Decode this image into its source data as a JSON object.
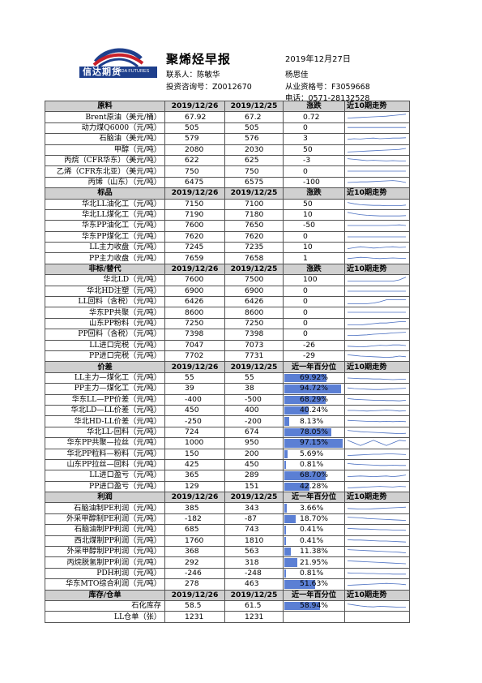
{
  "header": {
    "logo_cn": "信达期货",
    "logo_en": "CINDA FUTURES",
    "title": "聚烯烃早报",
    "date": "2019年12月27日",
    "contact_label": "联系人：陈敏华",
    "analyst": "杨思佳",
    "advisor_no": "投资咨询号：Z0012670",
    "license_no": "从业资格号：F3059668",
    "phone": "电话：0571-28132528"
  },
  "sections": [
    {
      "type": "price",
      "header": [
        "原料",
        "2019/12/26",
        "2019/12/25",
        "涨跌",
        "近10期走势"
      ],
      "rows": [
        {
          "name": "Brent原油（美元/桶）",
          "v1": "67.92",
          "v2": "67.2",
          "chg": "0.72",
          "trend": [
            0.3,
            0.35,
            0.4,
            0.45,
            0.5,
            0.55,
            0.6,
            0.7,
            0.8,
            0.9
          ]
        },
        {
          "name": "动力煤Q6000（元/吨）",
          "v1": "505",
          "v2": "505",
          "chg": "0",
          "trend": [
            0.6,
            0.6,
            0.6,
            0.6,
            0.6,
            0.6,
            0.6,
            0.6,
            0.6,
            0.6
          ]
        },
        {
          "name": "石脑油（美元/吨）",
          "v1": "579",
          "v2": "576",
          "chg": "3",
          "trend": [
            0.4,
            0.5,
            0.45,
            0.55,
            0.6,
            0.5,
            0.55,
            0.6,
            0.6,
            0.65
          ]
        },
        {
          "name": "甲醇（元/吨）",
          "v1": "2080",
          "v2": "2030",
          "chg": "50",
          "trend": [
            0.2,
            0.25,
            0.3,
            0.35,
            0.4,
            0.45,
            0.5,
            0.55,
            0.6,
            0.75
          ]
        },
        {
          "name": "丙烷（CFR华东）（美元/吨）",
          "v1": "622",
          "v2": "625",
          "chg": "-3",
          "trend": [
            0.8,
            0.7,
            0.6,
            0.5,
            0.55,
            0.5,
            0.45,
            0.5,
            0.45,
            0.45
          ]
        },
        {
          "name": "乙烯（CFR东北亚）（美元/吨）",
          "v1": "750",
          "v2": "750",
          "chg": "0",
          "trend": [
            0.5,
            0.5,
            0.5,
            0.5,
            0.5,
            0.5,
            0.5,
            0.5,
            0.5,
            0.5
          ]
        },
        {
          "name": "丙烯（山东）（元/吨）",
          "v1": "6475",
          "v2": "6575",
          "chg": "-100",
          "trend": [
            0.5,
            0.55,
            0.6,
            0.6,
            0.65,
            0.7,
            0.75,
            0.8,
            0.7,
            0.5
          ]
        }
      ]
    },
    {
      "type": "price",
      "header": [
        "标品",
        "2019/12/26",
        "2019/12/25",
        "涨跌",
        "近10期走势"
      ],
      "rows": [
        {
          "name": "华北LL油化工（元/吨）",
          "v1": "7150",
          "v2": "7100",
          "chg": "50",
          "trend": [
            0.8,
            0.6,
            0.45,
            0.4,
            0.35,
            0.35,
            0.3,
            0.3,
            0.3,
            0.4
          ]
        },
        {
          "name": "华北LL煤化工（元/吨）",
          "v1": "7190",
          "v2": "7180",
          "chg": "10",
          "trend": [
            0.9,
            0.7,
            0.55,
            0.45,
            0.4,
            0.35,
            0.35,
            0.35,
            0.35,
            0.4
          ]
        },
        {
          "name": "华东PP油化工（元/吨）",
          "v1": "7600",
          "v2": "7650",
          "chg": "-50",
          "trend": [
            0.5,
            0.5,
            0.5,
            0.5,
            0.5,
            0.5,
            0.5,
            0.55,
            0.6,
            0.5
          ]
        },
        {
          "name": "华东PP煤化工（元/吨）",
          "v1": "7620",
          "v2": "7620",
          "chg": "0",
          "trend": [
            0.5,
            0.5,
            0.5,
            0.5,
            0.5,
            0.5,
            0.5,
            0.5,
            0.5,
            0.5
          ]
        },
        {
          "name": "LL主力收盘（元/吨）",
          "v1": "7245",
          "v2": "7235",
          "chg": "10",
          "trend": [
            0.3,
            0.45,
            0.6,
            0.5,
            0.4,
            0.45,
            0.55,
            0.6,
            0.5,
            0.55
          ]
        },
        {
          "name": "PP主力收盘（元/吨）",
          "v1": "7659",
          "v2": "7658",
          "chg": "1",
          "trend": [
            0.4,
            0.5,
            0.6,
            0.55,
            0.45,
            0.4,
            0.45,
            0.5,
            0.45,
            0.45
          ]
        }
      ]
    },
    {
      "type": "price",
      "header": [
        "非标/替代",
        "2019/12/26",
        "2019/12/25",
        "涨跌",
        "近10期走势"
      ],
      "rows": [
        {
          "name": "华北LD（元/吨）",
          "v1": "7600",
          "v2": "7500",
          "chg": "100",
          "trend": [
            0.3,
            0.3,
            0.3,
            0.3,
            0.3,
            0.3,
            0.3,
            0.3,
            0.5,
            0.9
          ]
        },
        {
          "name": "华北HD注塑（元/吨）",
          "v1": "6900",
          "v2": "6900",
          "chg": "0",
          "trend": [
            0.5,
            0.5,
            0.5,
            0.5,
            0.5,
            0.5,
            0.5,
            0.5,
            0.5,
            0.5
          ]
        },
        {
          "name": "LL回料（含税）（元/吨）",
          "v1": "6426",
          "v2": "6426",
          "chg": "0",
          "trend": [
            0.2,
            0.2,
            0.2,
            0.2,
            0.3,
            0.5,
            0.8,
            0.8,
            0.8,
            0.8
          ]
        },
        {
          "name": "华东PP共聚（元/吨）",
          "v1": "8600",
          "v2": "8600",
          "chg": "0",
          "trend": [
            0.5,
            0.5,
            0.5,
            0.5,
            0.5,
            0.5,
            0.5,
            0.5,
            0.5,
            0.5
          ]
        },
        {
          "name": "山东PP粉料（元/吨）",
          "v1": "7250",
          "v2": "7250",
          "chg": "0",
          "trend": [
            0.3,
            0.3,
            0.3,
            0.4,
            0.5,
            0.6,
            0.6,
            0.7,
            0.8,
            0.8
          ]
        },
        {
          "name": "PP回料（含税）（元/吨）",
          "v1": "7398",
          "v2": "7398",
          "chg": "0",
          "trend": [
            0.3,
            0.3,
            0.35,
            0.4,
            0.5,
            0.55,
            0.6,
            0.7,
            0.75,
            0.8
          ]
        },
        {
          "name": "LL进口完税（元/吨）",
          "v1": "7047",
          "v2": "7073",
          "chg": "-26",
          "trend": [
            0.4,
            0.35,
            0.3,
            0.35,
            0.45,
            0.55,
            0.5,
            0.6,
            0.6,
            0.5
          ]
        },
        {
          "name": "PP进口完税（元/吨）",
          "v1": "7702",
          "v2": "7731",
          "chg": "-29",
          "trend": [
            0.7,
            0.6,
            0.5,
            0.45,
            0.4,
            0.35,
            0.3,
            0.35,
            0.5,
            0.4
          ]
        }
      ]
    },
    {
      "type": "pct",
      "header": [
        "价差",
        "2019/12/26",
        "2019/12/25",
        "近一年百分位",
        "近10期走势"
      ],
      "rows": [
        {
          "name": "LL主力—煤化工（元/吨）",
          "v1": "55",
          "v2": "55",
          "pct": "69.92%",
          "frac": 0.6992,
          "trend": [
            0.5,
            0.45,
            0.4,
            0.4,
            0.35,
            0.35,
            0.3,
            0.25,
            0.3,
            0.3
          ]
        },
        {
          "name": "PP主力—煤化工（元/吨）",
          "v1": "39",
          "v2": "38",
          "pct": "94.72%",
          "frac": 0.9472,
          "trend": [
            0.6,
            0.5,
            0.45,
            0.4,
            0.35,
            0.35,
            0.4,
            0.45,
            0.5,
            0.55
          ]
        },
        {
          "name": "华东LL—PP价差（元/吨）",
          "v1": "-400",
          "v2": "-500",
          "pct": "68.29%",
          "frac": 0.6829,
          "trend": [
            0.7,
            0.6,
            0.55,
            0.5,
            0.45,
            0.45,
            0.4,
            0.4,
            0.35,
            0.45
          ]
        },
        {
          "name": "华北LD—LL价差（元/吨）",
          "v1": "450",
          "v2": "400",
          "pct": "40.24%",
          "frac": 0.4024,
          "trend": [
            0.5,
            0.5,
            0.45,
            0.4,
            0.45,
            0.5,
            0.55,
            0.5,
            0.4,
            0.45
          ]
        },
        {
          "name": "华北HD-LL价差（元/吨）",
          "v1": "-250",
          "v2": "-200",
          "pct": "8.13%",
          "frac": 0.0813,
          "trend": [
            0.6,
            0.55,
            0.5,
            0.45,
            0.45,
            0.4,
            0.45,
            0.4,
            0.45,
            0.4
          ]
        },
        {
          "name": "华北LL-回料（元/吨）",
          "v1": "724",
          "v2": "674",
          "pct": "78.05%",
          "frac": 0.7805,
          "trend": [
            0.8,
            0.7,
            0.6,
            0.55,
            0.5,
            0.45,
            0.4,
            0.35,
            0.3,
            0.35
          ]
        },
        {
          "name": "华东PP共聚—拉丝（元/吨）",
          "v1": "1000",
          "v2": "950",
          "pct": "97.15%",
          "frac": 0.9715,
          "trend": [
            0.9,
            0.5,
            0.1,
            0.5,
            0.9,
            0.5,
            0.1,
            0.5,
            0.9,
            0.8
          ]
        },
        {
          "name": "华北PP粒料—粉料（元/吨）",
          "v1": "150",
          "v2": "200",
          "pct": "5.69%",
          "frac": 0.0569,
          "trend": [
            0.3,
            0.35,
            0.4,
            0.45,
            0.5,
            0.5,
            0.55,
            0.55,
            0.5,
            0.45
          ]
        },
        {
          "name": "山东PP拉丝—回料（元/吨）",
          "v1": "425",
          "v2": "450",
          "pct": "0.81%",
          "frac": 0.0081,
          "trend": [
            0.7,
            0.6,
            0.55,
            0.5,
            0.45,
            0.4,
            0.4,
            0.45,
            0.4,
            0.4
          ]
        },
        {
          "name": "LL进口盈亏（元/吨）",
          "v1": "365",
          "v2": "289",
          "pct": "68.70%",
          "frac": 0.687,
          "trend": [
            0.3,
            0.35,
            0.4,
            0.35,
            0.3,
            0.35,
            0.4,
            0.3,
            0.4,
            0.55
          ]
        },
        {
          "name": "PP进口盈亏（元/吨）",
          "v1": "129",
          "v2": "151",
          "pct": "42.28%",
          "frac": 0.4228,
          "trend": [
            0.3,
            0.35,
            0.4,
            0.45,
            0.5,
            0.55,
            0.5,
            0.45,
            0.55,
            0.5
          ]
        }
      ]
    },
    {
      "type": "pct",
      "header": [
        "利润",
        "2019/12/26",
        "2019/12/25",
        "近一年百分位",
        "近10期走势"
      ],
      "rows": [
        {
          "name": "石脑油制PE利润（元/吨）",
          "v1": "385",
          "v2": "343",
          "pct": "3.66%",
          "frac": 0.0366,
          "trend": [
            0.4,
            0.35,
            0.3,
            0.3,
            0.35,
            0.4,
            0.45,
            0.5,
            0.55,
            0.6
          ]
        },
        {
          "name": "外采甲醇制PE利润（元/吨）",
          "v1": "-182",
          "v2": "-87",
          "pct": "18.70%",
          "frac": 0.187,
          "trend": [
            0.8,
            0.75,
            0.7,
            0.6,
            0.55,
            0.5,
            0.45,
            0.4,
            0.35,
            0.3
          ]
        },
        {
          "name": "石脑油制PP利润（元/吨）",
          "v1": "685",
          "v2": "743",
          "pct": "0.41%",
          "frac": 0.0041,
          "trend": [
            0.7,
            0.65,
            0.6,
            0.6,
            0.55,
            0.5,
            0.5,
            0.45,
            0.45,
            0.4
          ]
        },
        {
          "name": "西北煤制PP利润（元/吨）",
          "v1": "1760",
          "v2": "1810",
          "pct": "0.41%",
          "frac": 0.0041,
          "trend": [
            0.7,
            0.65,
            0.65,
            0.6,
            0.55,
            0.5,
            0.5,
            0.45,
            0.4,
            0.35
          ]
        },
        {
          "name": "外采甲醇制PP利润（元/吨）",
          "v1": "368",
          "v2": "563",
          "pct": "11.38%",
          "frac": 0.1138,
          "trend": [
            0.8,
            0.75,
            0.7,
            0.65,
            0.6,
            0.55,
            0.5,
            0.45,
            0.4,
            0.3
          ]
        },
        {
          "name": "丙烷脱氢制PP利润（元/吨）",
          "v1": "292",
          "v2": "318",
          "pct": "21.95%",
          "frac": 0.2195,
          "trend": [
            0.7,
            0.65,
            0.6,
            0.55,
            0.5,
            0.45,
            0.4,
            0.35,
            0.3,
            0.25
          ]
        },
        {
          "name": "PDH利润（元/吨）",
          "v1": "-246",
          "v2": "-248",
          "pct": "0.81%",
          "frac": 0.0081,
          "trend": [
            0.6,
            0.55,
            0.55,
            0.5,
            0.5,
            0.45,
            0.45,
            0.4,
            0.4,
            0.4
          ]
        },
        {
          "name": "华东MTO综合利润（元/吨）",
          "v1": "278",
          "v2": "463",
          "pct": "51.63%",
          "frac": 0.5163,
          "trend": [
            0.3,
            0.35,
            0.4,
            0.45,
            0.5,
            0.55,
            0.6,
            0.55,
            0.5,
            0.4
          ]
        }
      ]
    },
    {
      "type": "pct",
      "header": [
        "库存/仓单",
        "2019/12/26",
        "2019/12/25",
        "近一年百分位",
        "近10期走势"
      ],
      "rows": [
        {
          "name": "石化库存",
          "v1": "58.5",
          "v2": "61.5",
          "pct": "58.94%",
          "frac": 0.5894,
          "trend": [
            0.8,
            0.65,
            0.5,
            0.4,
            0.35,
            0.45,
            0.4,
            0.35,
            0.3,
            0.3
          ]
        },
        {
          "name": "LL仓单（张）",
          "v1": "1231",
          "v2": "1231",
          "pct": "",
          "frac": 0,
          "trend": []
        }
      ]
    }
  ],
  "colors": {
    "header_bg": "#d0d0d0",
    "bar": "#5b7fd4",
    "logo_blue": "#1e3f8c",
    "logo_red": "#c8202a"
  }
}
